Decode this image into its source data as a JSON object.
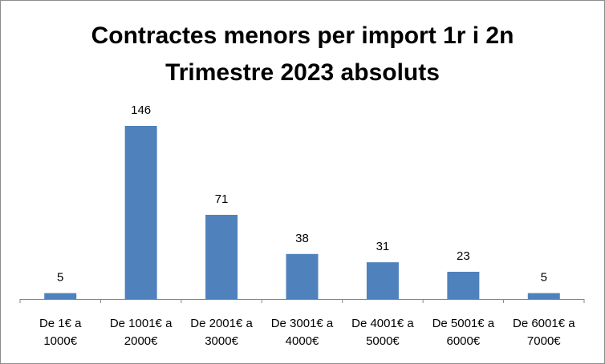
{
  "chart_data": {
    "type": "bar",
    "title_line1": "Contractes menors per import 1r i 2n",
    "title_line2": "Trimestre 2023 absoluts",
    "categories": [
      [
        "De 1€ a",
        "1000€"
      ],
      [
        "De 1001€ a",
        "2000€"
      ],
      [
        "De 2001€ a",
        "3000€"
      ],
      [
        "De 3001€ a",
        "4000€"
      ],
      [
        "De 4001€ a",
        "5000€"
      ],
      [
        "De 5001€ a",
        "6000€"
      ],
      [
        "De 6001€ a",
        "7000€"
      ]
    ],
    "values": [
      5,
      146,
      71,
      38,
      31,
      23,
      5
    ],
    "xlabel": "",
    "ylabel": "",
    "ylim": [
      0,
      146
    ],
    "grid": false,
    "legend": "none",
    "bar_color": "#4f81bd"
  }
}
